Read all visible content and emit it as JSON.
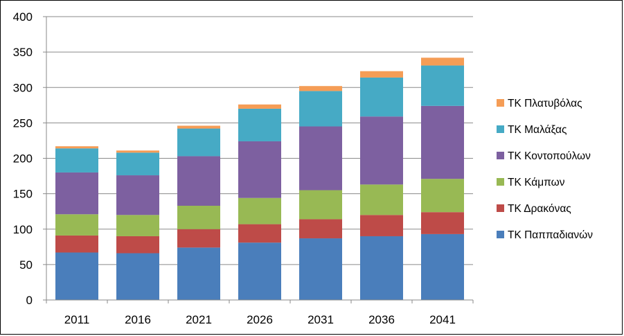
{
  "chart_data": {
    "type": "bar",
    "stacked": true,
    "categories": [
      "2011",
      "2016",
      "2021",
      "2026",
      "2031",
      "2036",
      "2041"
    ],
    "ylim": [
      0,
      400
    ],
    "yticks": [
      "0",
      "50",
      "100",
      "150",
      "200",
      "250",
      "300",
      "350",
      "400"
    ],
    "grid": true,
    "legend_position": "right",
    "series": [
      {
        "name": "ΤΚ Παππαδιανών",
        "color": "#4a7ebb",
        "values": [
          67,
          66,
          74,
          81,
          87,
          90,
          93
        ]
      },
      {
        "name": "ΤΚ Δρακόνας",
        "color": "#be4b48",
        "values": [
          24,
          24,
          26,
          26,
          27,
          30,
          31
        ]
      },
      {
        "name": "ΤΚ Κάμπων",
        "color": "#98b954",
        "values": [
          30,
          30,
          33,
          37,
          41,
          43,
          47
        ]
      },
      {
        "name": "ΤΚ Κοντοπούλων",
        "color": "#7d60a0",
        "values": [
          59,
          56,
          70,
          80,
          90,
          96,
          103
        ]
      },
      {
        "name": "ΤΚ Μαλάξας",
        "color": "#46aac5",
        "values": [
          34,
          32,
          39,
          46,
          50,
          55,
          57
        ]
      },
      {
        "name": "ΤΚ Πλατυβόλας",
        "color": "#f59d56",
        "values": [
          3,
          3,
          4,
          6,
          7,
          9,
          11
        ]
      }
    ]
  }
}
